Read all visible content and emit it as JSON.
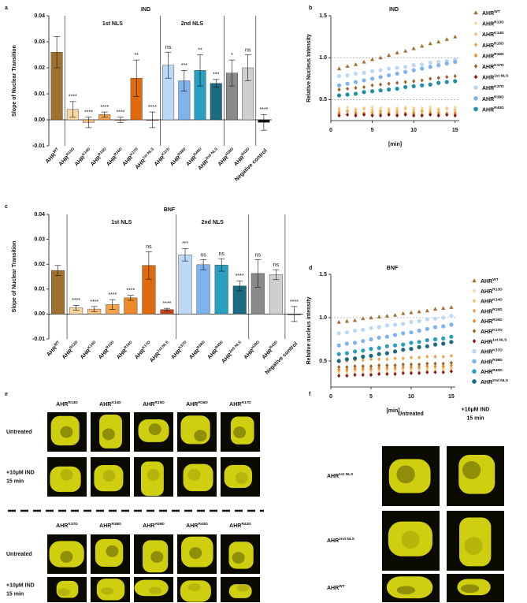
{
  "panel_labels": [
    "a",
    "b",
    "c",
    "d",
    "e",
    "f"
  ],
  "chart_data": [
    {
      "type": "bar",
      "title": "IND",
      "y_label": "Slope of Nuclear Transition",
      "categories": [
        "AHR",
        "AHR",
        "AHR",
        "AHR",
        "AHR",
        "AHR",
        "AHR",
        "AHR",
        "AHR",
        "AHR",
        "AHR",
        "AHR",
        "AHR",
        "Negative control"
      ],
      "category_superscripts": [
        "WT",
        "R13D",
        "K14D",
        "R15D",
        "R16D",
        "K17D",
        "1st NLS",
        "K37D",
        "R38D",
        "R40D",
        "2nd NLS",
        "H39D",
        "R42D",
        null
      ],
      "values": [
        0.026,
        0.004,
        -0.001,
        0.002,
        0,
        0.016,
        0,
        0.021,
        0.015,
        0.019,
        0.014,
        0.018,
        0.02,
        -0.001
      ],
      "errors": [
        0.006,
        0.003,
        0.002,
        0.001,
        0.001,
        0.007,
        0.003,
        0.005,
        0.004,
        0.006,
        0.0015,
        0.005,
        0.005,
        0.003
      ],
      "annotations": [
        null,
        "****",
        "****",
        "****",
        "****",
        "**",
        "****",
        "ns",
        "***",
        "**",
        "***",
        "*",
        "ns",
        "****"
      ],
      "colors": [
        "#a0702e",
        "#f7d6a0",
        "#f5c07a",
        "#f2a24a",
        "#ee8a2a",
        "#e06a10",
        "#c0451a",
        "#bcd8f5",
        "#7fb3ee",
        "#2aa0c0",
        "#1c6b80",
        "#8a8a8a",
        "#cfcfcf",
        "#111111"
      ],
      "groups": [
        {
          "label": "1st NLS",
          "span": [
            1,
            6
          ]
        },
        {
          "label": "2nd NLS",
          "span": [
            7,
            10
          ]
        }
      ],
      "ylim": [
        -0.01,
        0.04
      ],
      "yticks": [
        -0.01,
        {
          "value": 0,
          "label": "0.00"
        },
        0.01,
        0.02,
        0.03,
        0.04
      ]
    },
    {
      "type": "scatter",
      "title": "IND",
      "x_label": "[min]",
      "y_label": "Relative Nucleus Intensity",
      "x": [
        1,
        2,
        3,
        4,
        5,
        6,
        7,
        8,
        9,
        10,
        11,
        12,
        13,
        14,
        15
      ],
      "xlim": [
        0,
        15.5
      ],
      "xticks": [
        0,
        5,
        10,
        15
      ],
      "ylim": [
        0.25,
        1.5
      ],
      "yticks": [
        0.5,
        {
          "value": 1,
          "label": "1.0"
        },
        1.5
      ],
      "reference_lines": [
        1,
        0.5
      ],
      "series": [
        {
          "name": "AHR",
          "name_superscript": "WT",
          "color": "#a0702e",
          "marker": "triangle",
          "values": [
            0.87,
            0.9,
            0.92,
            0.95,
            0.98,
            1.0,
            1.03,
            1.06,
            1.08,
            1.11,
            1.14,
            1.17,
            1.19,
            1.22,
            1.25
          ]
        },
        {
          "name": "AHR",
          "name_superscript": "R13D",
          "color": "#f7d6a0",
          "marker": "diamond",
          "values": [
            0.4,
            0.41,
            0.39,
            0.4,
            0.41,
            0.4,
            0.39,
            0.4,
            0.41,
            0.4,
            0.4,
            0.41,
            0.39,
            0.4,
            0.41
          ]
        },
        {
          "name": "AHR",
          "name_superscript": "K14D",
          "color": "#f5c07a",
          "marker": "diamond",
          "values": [
            0.38,
            0.37,
            0.38,
            0.39,
            0.38,
            0.37,
            0.38,
            0.38,
            0.39,
            0.38,
            0.37,
            0.38,
            0.38,
            0.39,
            0.38
          ]
        },
        {
          "name": "AHR",
          "name_superscript": "R15D",
          "color": "#f2a24a",
          "marker": "diamond",
          "values": [
            0.35,
            0.36,
            0.35,
            0.34,
            0.35,
            0.36,
            0.35,
            0.35,
            0.34,
            0.35,
            0.36,
            0.35,
            0.35,
            0.34,
            0.35
          ]
        },
        {
          "name": "AHR",
          "name_superscript": "R16D",
          "color": "#ee8a2a",
          "marker": "diamond",
          "values": [
            0.33,
            0.32,
            0.33,
            0.33,
            0.32,
            0.33,
            0.33,
            0.32,
            0.33,
            0.33,
            0.32,
            0.33,
            0.33,
            0.32,
            0.33
          ]
        },
        {
          "name": "AHR",
          "name_superscript": "K17D",
          "color": "#a0602a",
          "marker": "diamond",
          "values": [
            0.62,
            0.63,
            0.64,
            0.65,
            0.67,
            0.68,
            0.69,
            0.7,
            0.71,
            0.72,
            0.73,
            0.75,
            0.76,
            0.77,
            0.78
          ]
        },
        {
          "name": "AHR",
          "name_superscript": "1st.NLS",
          "color": "#8b1a1a",
          "marker": "diamond",
          "values": [
            0.31,
            0.32,
            0.31,
            0.32,
            0.31,
            0.31,
            0.32,
            0.31,
            0.32,
            0.31,
            0.31,
            0.32,
            0.31,
            0.32,
            0.31
          ]
        },
        {
          "name": "AHR",
          "name_superscript": "K37D",
          "color": "#bcd8f5",
          "marker": "circle",
          "values": [
            0.78,
            0.79,
            0.81,
            0.82,
            0.84,
            0.85,
            0.87,
            0.88,
            0.89,
            0.91,
            0.92,
            0.94,
            0.95,
            0.96,
            0.98
          ]
        },
        {
          "name": "AHR",
          "name_superscript": "R38D",
          "color": "#7fb3ee",
          "marker": "circle",
          "values": [
            0.67,
            0.69,
            0.71,
            0.73,
            0.75,
            0.77,
            0.79,
            0.81,
            0.83,
            0.85,
            0.87,
            0.89,
            0.91,
            0.93,
            0.95
          ]
        },
        {
          "name": "AHR",
          "name_superscript": "R40D",
          "color": "#1f8fa8",
          "marker": "circle",
          "values": [
            0.55,
            0.56,
            0.57,
            0.59,
            0.6,
            0.61,
            0.62,
            0.63,
            0.65,
            0.66,
            0.67,
            0.68,
            0.7,
            0.71,
            0.72
          ]
        }
      ]
    },
    {
      "type": "bar",
      "title": "BNF",
      "y_label": "Slope of Nuclear Transition",
      "categories": [
        "AHR",
        "AHR",
        "AHR",
        "AHR",
        "AHR",
        "AHR",
        "AHR",
        "AHR",
        "AHR",
        "AHR",
        "AHR",
        "AHR",
        "AHR",
        "Negative control"
      ],
      "category_superscripts": [
        "WT",
        "R13D",
        "K14D",
        "R15D",
        "R16D",
        "K17D",
        "1st.NLS",
        "K37D",
        "R38D",
        "R40D",
        "2nd NLS",
        "H39D",
        "R42D",
        null
      ],
      "values": [
        0.0175,
        0.0025,
        0.002,
        0.0038,
        0.0065,
        0.0195,
        0.0018,
        0.0238,
        0.0198,
        0.0197,
        0.0113,
        0.0163,
        0.0158,
        0
      ],
      "errors": [
        0.002,
        0.001,
        0.001,
        0.002,
        0.001,
        0.0055,
        0.0005,
        0.0025,
        0.002,
        0.0025,
        0.002,
        0.0055,
        0.002,
        0.003
      ],
      "annotations": [
        null,
        "****",
        "****",
        "****",
        "****",
        "ns",
        "****",
        "***",
        "ns",
        "ns",
        "****",
        "ns",
        "ns",
        "****"
      ],
      "colors": [
        "#a0702e",
        "#f7d6a0",
        "#f5c07a",
        "#f2a24a",
        "#ee8a2a",
        "#e06a10",
        "#c0451a",
        "#bcd8f5",
        "#7fb3ee",
        "#2aa0c0",
        "#1c6b80",
        "#8a8a8a",
        "#cfcfcf",
        "#111111"
      ],
      "groups": [
        {
          "label": "1st NLS",
          "span": [
            1,
            6
          ]
        },
        {
          "label": "2nd NLS",
          "span": [
            7,
            10
          ]
        }
      ],
      "ylim": [
        -0.01,
        0.04
      ],
      "yticks": [
        -0.01,
        {
          "value": 0,
          "label": "0.00"
        },
        0.01,
        0.02,
        0.03,
        0.04
      ]
    },
    {
      "type": "scatter",
      "title": "BNF",
      "x_label": "[min]",
      "y_label": "Relative nucleus intensity",
      "x": [
        1,
        2,
        3,
        4,
        5,
        6,
        7,
        8,
        9,
        10,
        11,
        12,
        13,
        14,
        15
      ],
      "xlim": [
        0,
        15.5
      ],
      "xticks": [
        0,
        5,
        10,
        15
      ],
      "ylim": [
        0.2,
        1.5
      ],
      "yticks": [
        0.5,
        {
          "value": 1,
          "label": "1.0"
        },
        1.5
      ],
      "reference_lines": [
        1
      ],
      "series": [
        {
          "name": "AHR",
          "name_superscript": "WT",
          "color": "#a0702e",
          "marker": "triangle",
          "values": [
            0.95,
            0.96,
            0.97,
            0.99,
            1.0,
            1.01,
            1.02,
            1.03,
            1.05,
            1.06,
            1.07,
            1.08,
            1.1,
            1.11,
            1.12
          ]
        },
        {
          "name": "AHR",
          "name_superscript": "R13D",
          "color": "#f7d6a0",
          "marker": "diamond",
          "values": [
            0.35,
            0.35,
            0.36,
            0.36,
            0.36,
            0.37,
            0.37,
            0.37,
            0.38,
            0.38,
            0.38,
            0.39,
            0.39,
            0.4,
            0.4
          ]
        },
        {
          "name": "AHR",
          "name_superscript": "K14D",
          "color": "#f5c07a",
          "marker": "diamond",
          "values": [
            0.38,
            0.38,
            0.39,
            0.39,
            0.39,
            0.4,
            0.4,
            0.4,
            0.41,
            0.41,
            0.41,
            0.41,
            0.42,
            0.42,
            0.42
          ]
        },
        {
          "name": "AHR",
          "name_superscript": "R15D",
          "color": "#f2a24a",
          "marker": "diamond",
          "values": [
            0.5,
            0.5,
            0.51,
            0.51,
            0.52,
            0.52,
            0.52,
            0.53,
            0.53,
            0.54,
            0.54,
            0.55,
            0.55,
            0.55,
            0.56
          ]
        },
        {
          "name": "AHR",
          "name_superscript": "R16D",
          "color": "#ee8a2a",
          "marker": "diamond",
          "values": [
            0.4,
            0.4,
            0.41,
            0.41,
            0.41,
            0.42,
            0.42,
            0.42,
            0.43,
            0.43,
            0.43,
            0.44,
            0.44,
            0.44,
            0.45
          ]
        },
        {
          "name": "AHR",
          "name_superscript": "K17D",
          "color": "#a0602a",
          "marker": "diamond",
          "values": [
            0.43,
            0.43,
            0.44,
            0.44,
            0.44,
            0.45,
            0.45,
            0.45,
            0.46,
            0.46,
            0.46,
            0.47,
            0.47,
            0.47,
            0.48
          ]
        },
        {
          "name": "AHR",
          "name_superscript": "1st.NLS",
          "color": "#8b1a1a",
          "marker": "diamond",
          "values": [
            0.33,
            0.33,
            0.34,
            0.34,
            0.34,
            0.35,
            0.35,
            0.35,
            0.36,
            0.36,
            0.36,
            0.37,
            0.37,
            0.37,
            0.38
          ]
        },
        {
          "name": "AHR",
          "name_superscript": "K37D",
          "color": "#bcd8f5",
          "marker": "circle",
          "values": [
            0.82,
            0.83,
            0.85,
            0.86,
            0.88,
            0.89,
            0.91,
            0.92,
            0.93,
            0.95,
            0.96,
            0.98,
            0.99,
            1.0,
            1.02
          ]
        },
        {
          "name": "AHR",
          "name_superscript": "R38D",
          "color": "#7fb3ee",
          "marker": "circle",
          "values": [
            0.68,
            0.7,
            0.71,
            0.73,
            0.75,
            0.77,
            0.78,
            0.8,
            0.82,
            0.83,
            0.85,
            0.87,
            0.89,
            0.9,
            0.92
          ]
        },
        {
          "name": "AHR",
          "name_superscript": "R40D",
          "color": "#2aa0c0",
          "marker": "circle",
          "values": [
            0.58,
            0.59,
            0.61,
            0.62,
            0.64,
            0.65,
            0.67,
            0.68,
            0.69,
            0.71,
            0.72,
            0.74,
            0.75,
            0.76,
            0.78
          ]
        },
        {
          "name": "AHR",
          "name_superscript": "2nd NLS",
          "color": "#1c6b80",
          "marker": "circle",
          "values": [
            0.5,
            0.52,
            0.53,
            0.55,
            0.56,
            0.58,
            0.59,
            0.61,
            0.63,
            0.64,
            0.66,
            0.67,
            0.69,
            0.7,
            0.72
          ]
        }
      ]
    }
  ],
  "panel_e": {
    "top_headers": [
      {
        "base": "AHR",
        "sup": "R13D"
      },
      {
        "base": "AHR",
        "sup": "K14D"
      },
      {
        "base": "AHR",
        "sup": "R15D"
      },
      {
        "base": "AHR",
        "sup": "R16D"
      },
      {
        "base": "AHR",
        "sup": "R17D"
      }
    ],
    "bottom_headers": [
      {
        "base": "AHR",
        "sup": "K37D"
      },
      {
        "base": "AHR",
        "sup": "R38D"
      },
      {
        "base": "AHR",
        "sup": "H39D"
      },
      {
        "base": "AHR",
        "sup": "R40D"
      },
      {
        "base": "AHR",
        "sup": "R42D"
      }
    ],
    "row_labels": [
      {
        "lines": [
          "Untreated"
        ]
      },
      {
        "lines": [
          "+10µM IND",
          "15 min"
        ]
      }
    ]
  },
  "panel_f": {
    "column_headers": [
      {
        "lines": [
          "Untreated"
        ]
      },
      {
        "lines": [
          "+10µM IND",
          "15 min"
        ]
      }
    ],
    "row_labels": [
      {
        "base": "AHR",
        "sup": "1st NLS"
      },
      {
        "base": "AHR",
        "sup": "2nd NLS"
      },
      {
        "base": "AHR",
        "sup": "WT"
      }
    ]
  }
}
